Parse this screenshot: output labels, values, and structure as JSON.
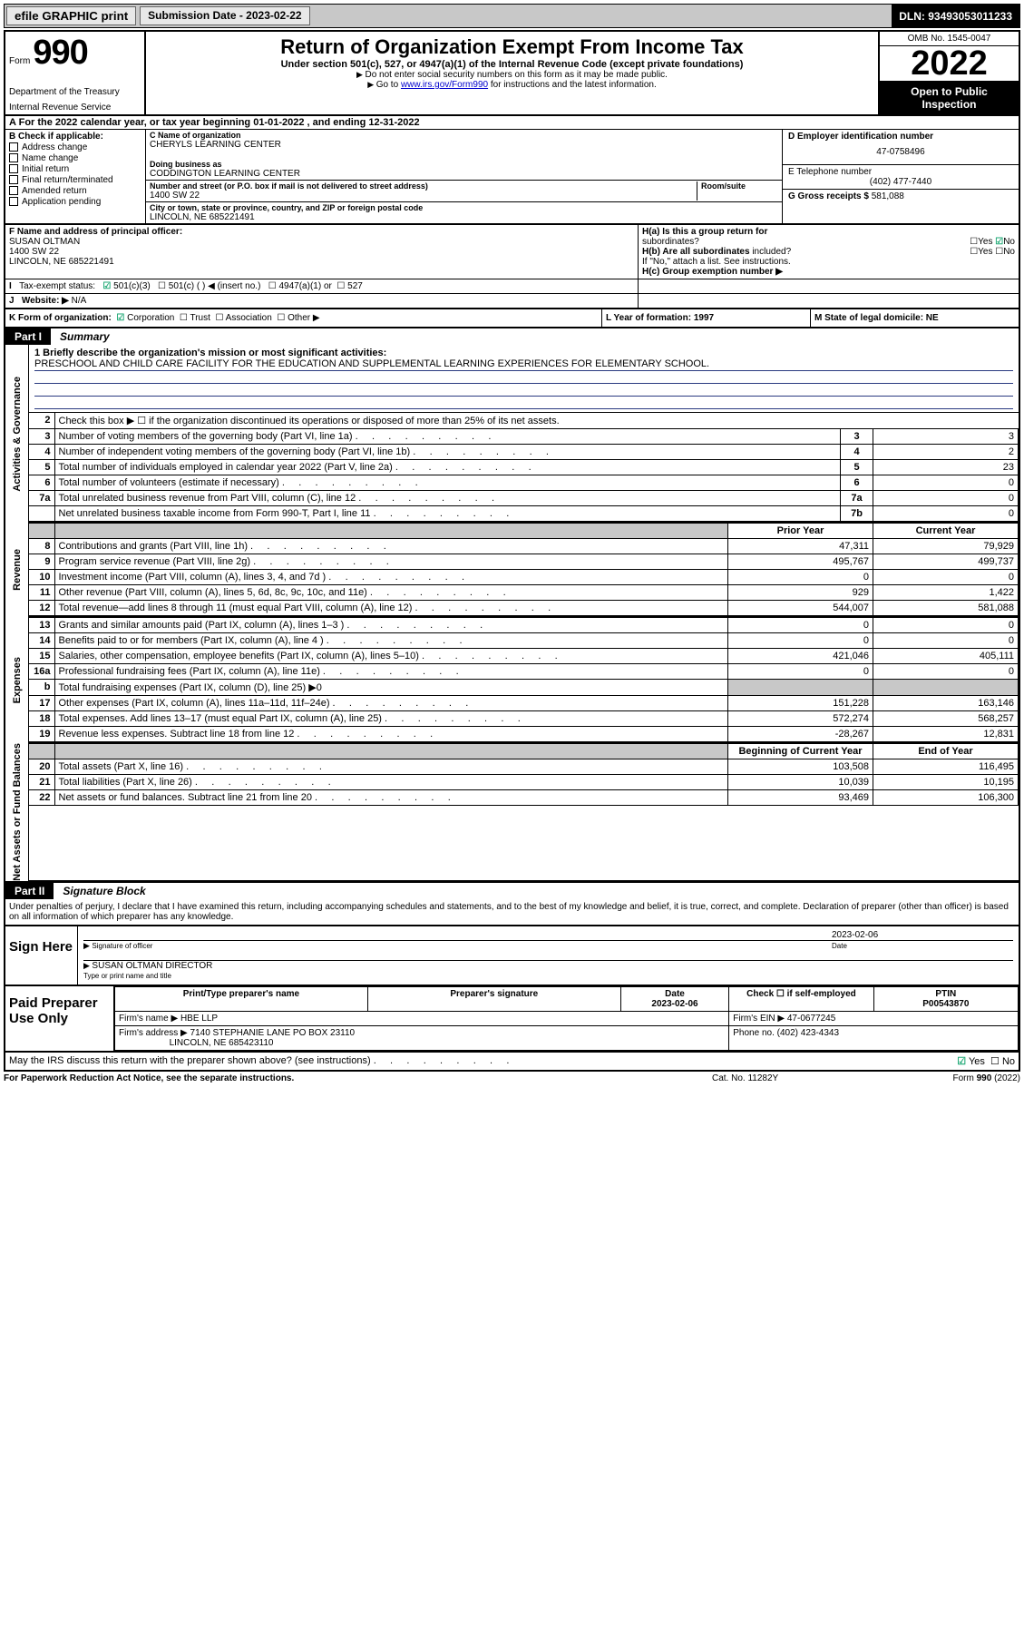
{
  "top_bar": {
    "efile": "efile GRAPHIC print",
    "submission_label": "Submission Date - 2023-02-22",
    "dln": "DLN: 93493053011233"
  },
  "header": {
    "form_label": "Form",
    "form_num": "990",
    "title": "Return of Organization Exempt From Income Tax",
    "subtitle": "Under section 501(c), 527, or 4947(a)(1) of the Internal Revenue Code (except private foundations)",
    "note1": "Do not enter social security numbers on this form as it may be made public.",
    "note2_pre": "Go to ",
    "note2_link": "www.irs.gov/Form990",
    "note2_post": " for instructions and the latest information.",
    "dept": "Department of the Treasury",
    "irs": "Internal Revenue Service",
    "omb": "OMB No. 1545-0047",
    "year": "2022",
    "inspect1": "Open to Public",
    "inspect2": "Inspection"
  },
  "row_a": "For the 2022 calendar year, or tax year beginning 01-01-2022    , and ending 12-31-2022",
  "box_b": {
    "head": "B Check if applicable:",
    "items": [
      "Address change",
      "Name change",
      "Initial return",
      "Final return/terminated",
      "Amended return",
      "Application pending"
    ]
  },
  "box_c": {
    "name_label": "C Name of organization",
    "name": "CHERYLS LEARNING CENTER",
    "dba_label": "Doing business as",
    "dba": "CODDINGTON LEARNING CENTER",
    "street_label": "Number and street (or P.O. box if mail is not delivered to street address)",
    "room_label": "Room/suite",
    "street": "1400 SW 22",
    "city_label": "City or town, state or province, country, and ZIP or foreign postal code",
    "city": "LINCOLN, NE  685221491"
  },
  "box_d": {
    "ein_label": "D Employer identification number",
    "ein": "47-0758496",
    "phone_label": "E Telephone number",
    "phone": "(402) 477-7440",
    "gross_label": "G Gross receipts $",
    "gross": "581,088"
  },
  "box_f": {
    "label": "F Name and address of principal officer:",
    "name": "SUSAN OLTMAN",
    "addr1": "1400 SW 22",
    "addr2": "LINCOLN, NE  685221491"
  },
  "box_h": {
    "a1": "H(a)  Is this a group return for",
    "a2": "subordinates?",
    "b1": "H(b)  Are all subordinates",
    "b2": "included?",
    "note": "If \"No,\" attach a list. See instructions.",
    "c": "H(c)  Group exemption number ▶"
  },
  "row_i": {
    "label": "Tax-exempt status:",
    "opts": [
      "501(c)(3)",
      "501(c) (   ) ◀ (insert no.)",
      "4947(a)(1) or",
      "527"
    ]
  },
  "row_j": {
    "label": "Website: ▶",
    "val": "N/A"
  },
  "row_k": {
    "label": "K Form of organization:",
    "opts": [
      "Corporation",
      "Trust",
      "Association",
      "Other ▶"
    ],
    "l": "L Year of formation: 1997",
    "m": "M State of legal domicile: NE"
  },
  "part1": {
    "tab": "Part I",
    "title": "Summary"
  },
  "sections": {
    "gov": "Activities & Governance",
    "rev": "Revenue",
    "exp": "Expenses",
    "net": "Net Assets or Fund Balances"
  },
  "mission": {
    "q": "1   Briefly describe the organization's mission or most significant activities:",
    "text": "PRESCHOOL AND CHILD CARE FACILITY FOR THE EDUCATION AND SUPPLEMENTAL LEARNING EXPERIENCES FOR ELEMENTARY SCHOOL."
  },
  "gov_lines": [
    {
      "n": "2",
      "desc": "Check this box ▶ ☐  if the organization discontinued its operations or disposed of more than 25% of its net assets.",
      "box": "",
      "val": ""
    },
    {
      "n": "3",
      "desc": "Number of voting members of the governing body (Part VI, line 1a)",
      "box": "3",
      "val": "3"
    },
    {
      "n": "4",
      "desc": "Number of independent voting members of the governing body (Part VI, line 1b)",
      "box": "4",
      "val": "2"
    },
    {
      "n": "5",
      "desc": "Total number of individuals employed in calendar year 2022 (Part V, line 2a)",
      "box": "5",
      "val": "23"
    },
    {
      "n": "6",
      "desc": "Total number of volunteers (estimate if necessary)",
      "box": "6",
      "val": "0"
    },
    {
      "n": "7a",
      "desc": "Total unrelated business revenue from Part VIII, column (C), line 12",
      "box": "7a",
      "val": "0"
    },
    {
      "n": "",
      "desc": "Net unrelated business taxable income from Form 990-T, Part I, line 11",
      "box": "7b",
      "val": "0"
    }
  ],
  "year_hdr": {
    "prior": "Prior Year",
    "current": "Current Year"
  },
  "rev_lines": [
    {
      "n": "8",
      "desc": "Contributions and grants (Part VIII, line 1h)",
      "p": "47,311",
      "c": "79,929"
    },
    {
      "n": "9",
      "desc": "Program service revenue (Part VIII, line 2g)",
      "p": "495,767",
      "c": "499,737"
    },
    {
      "n": "10",
      "desc": "Investment income (Part VIII, column (A), lines 3, 4, and 7d )",
      "p": "0",
      "c": "0"
    },
    {
      "n": "11",
      "desc": "Other revenue (Part VIII, column (A), lines 5, 6d, 8c, 9c, 10c, and 11e)",
      "p": "929",
      "c": "1,422"
    },
    {
      "n": "12",
      "desc": "Total revenue—add lines 8 through 11 (must equal Part VIII, column (A), line 12)",
      "p": "544,007",
      "c": "581,088"
    }
  ],
  "exp_lines": [
    {
      "n": "13",
      "desc": "Grants and similar amounts paid (Part IX, column (A), lines 1–3 )",
      "p": "0",
      "c": "0"
    },
    {
      "n": "14",
      "desc": "Benefits paid to or for members (Part IX, column (A), line 4 )",
      "p": "0",
      "c": "0"
    },
    {
      "n": "15",
      "desc": "Salaries, other compensation, employee benefits (Part IX, column (A), lines 5–10)",
      "p": "421,046",
      "c": "405,111"
    },
    {
      "n": "16a",
      "desc": "Professional fundraising fees (Part IX, column (A), line 11e)",
      "p": "0",
      "c": "0"
    },
    {
      "n": "b",
      "desc": "Total fundraising expenses (Part IX, column (D), line 25) ▶0",
      "p": "",
      "c": "",
      "shade": true
    },
    {
      "n": "17",
      "desc": "Other expenses (Part IX, column (A), lines 11a–11d, 11f–24e)",
      "p": "151,228",
      "c": "163,146"
    },
    {
      "n": "18",
      "desc": "Total expenses. Add lines 13–17 (must equal Part IX, column (A), line 25)",
      "p": "572,274",
      "c": "568,257"
    },
    {
      "n": "19",
      "desc": "Revenue less expenses. Subtract line 18 from line 12",
      "p": "-28,267",
      "c": "12,831"
    }
  ],
  "net_hdr": {
    "begin": "Beginning of Current Year",
    "end": "End of Year"
  },
  "net_lines": [
    {
      "n": "20",
      "desc": "Total assets (Part X, line 16)",
      "p": "103,508",
      "c": "116,495"
    },
    {
      "n": "21",
      "desc": "Total liabilities (Part X, line 26)",
      "p": "10,039",
      "c": "10,195"
    },
    {
      "n": "22",
      "desc": "Net assets or fund balances. Subtract line 21 from line 20",
      "p": "93,469",
      "c": "106,300"
    }
  ],
  "part2": {
    "tab": "Part II",
    "title": "Signature Block"
  },
  "sig": {
    "intro": "Under penalties of perjury, I declare that I have examined this return, including accompanying schedules and statements, and to the best of my knowledge and belief, it is true, correct, and complete. Declaration of preparer (other than officer) is based on all information of which preparer has any knowledge.",
    "here": "Sign Here",
    "date": "2023-02-06",
    "sig_of": "Signature of officer",
    "date_lbl": "Date",
    "name": "SUSAN OLTMAN  DIRECTOR",
    "name_lbl": "Type or print name and title"
  },
  "prep": {
    "label": "Paid Preparer Use Only",
    "h": [
      "Print/Type preparer's name",
      "Preparer's signature",
      "Date",
      "",
      "PTIN"
    ],
    "r1_date": "2023-02-06",
    "r1_chk": "Check ☐ if self-employed",
    "r1_ptin": "P00543870",
    "firm_name_lbl": "Firm's name    ▶",
    "firm_name": "HBE LLP",
    "firm_ein_lbl": "Firm's EIN ▶",
    "firm_ein": "47-0677245",
    "firm_addr_lbl": "Firm's address ▶",
    "firm_addr1": "7140 STEPHANIE LANE PO BOX 23110",
    "firm_addr2": "LINCOLN, NE  685423110",
    "firm_phone_lbl": "Phone no.",
    "firm_phone": "(402) 423-4343"
  },
  "bottom": {
    "q": "May the IRS discuss this return with the preparer shown above? (see instructions)",
    "yes": "Yes",
    "no": "No"
  },
  "footer": {
    "left": "For Paperwork Reduction Act Notice, see the separate instructions.",
    "mid": "Cat. No. 11282Y",
    "right": "Form 990 (2022)"
  }
}
